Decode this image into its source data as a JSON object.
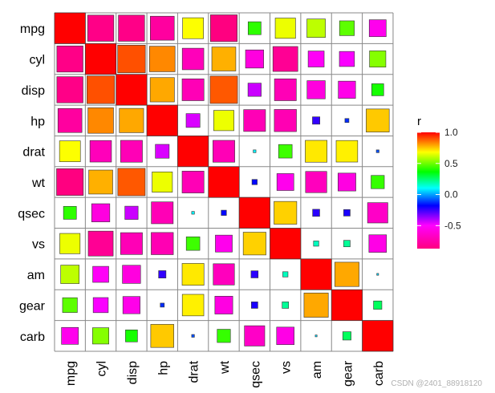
{
  "chart_data": {
    "type": "heatmap",
    "variables": [
      "mpg",
      "cyl",
      "disp",
      "hp",
      "drat",
      "wt",
      "qsec",
      "vs",
      "am",
      "gear",
      "carb"
    ],
    "matrix": [
      [
        1.0,
        -0.85,
        -0.85,
        -0.78,
        0.68,
        -0.87,
        0.42,
        0.66,
        0.6,
        0.48,
        -0.55
      ],
      [
        -0.85,
        1.0,
        0.9,
        0.83,
        -0.7,
        0.78,
        -0.59,
        -0.81,
        -0.52,
        -0.49,
        0.53
      ],
      [
        -0.85,
        0.9,
        1.0,
        0.79,
        -0.71,
        0.89,
        -0.43,
        -0.71,
        -0.59,
        -0.56,
        0.39
      ],
      [
        -0.78,
        0.83,
        0.79,
        1.0,
        -0.45,
        0.66,
        -0.71,
        -0.72,
        -0.24,
        -0.13,
        0.75
      ],
      [
        0.68,
        -0.7,
        -0.71,
        -0.45,
        1.0,
        -0.71,
        0.09,
        0.44,
        0.71,
        0.7,
        -0.09
      ],
      [
        -0.87,
        0.78,
        0.89,
        0.66,
        -0.71,
        1.0,
        -0.17,
        -0.55,
        -0.69,
        -0.58,
        0.43
      ],
      [
        0.42,
        -0.59,
        -0.43,
        -0.71,
        0.09,
        -0.17,
        1.0,
        0.74,
        -0.23,
        -0.21,
        -0.66
      ],
      [
        0.66,
        -0.81,
        -0.71,
        -0.72,
        0.44,
        -0.55,
        0.74,
        1.0,
        0.17,
        0.21,
        -0.57
      ],
      [
        0.6,
        -0.52,
        -0.59,
        -0.24,
        0.71,
        -0.69,
        -0.23,
        0.17,
        1.0,
        0.79,
        0.06
      ],
      [
        0.48,
        -0.49,
        -0.56,
        -0.13,
        0.7,
        -0.58,
        -0.21,
        0.21,
        0.79,
        1.0,
        0.27
      ],
      [
        -0.55,
        0.53,
        0.39,
        0.75,
        -0.09,
        0.43,
        -0.66,
        -0.57,
        0.06,
        0.27,
        1.0
      ]
    ],
    "legend": {
      "title": "r",
      "placement": "right",
      "ticks": [
        "1.0",
        "0.5",
        "0.0",
        "-0.5"
      ],
      "tick_values": [
        1.0,
        0.5,
        0.0,
        -0.5
      ],
      "range": [
        -0.87,
        1.0
      ]
    },
    "colors": {
      "gradient_top_to_bottom": [
        "#ff0000",
        "#ffff00",
        "#00ff00",
        "#00ffff",
        "#0000ff",
        "#ff00ff",
        "#ff0080"
      ],
      "grid_line": "#888888",
      "tile_border": "#333333"
    }
  },
  "watermark": "CSDN @2401_88918120"
}
